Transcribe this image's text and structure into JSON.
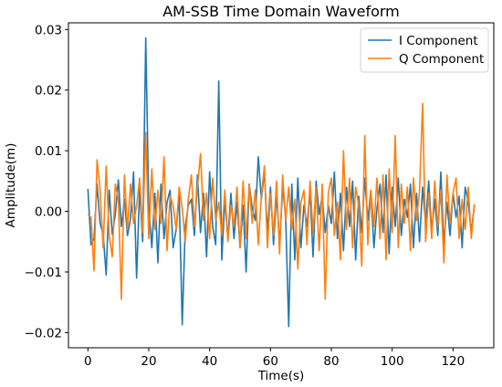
{
  "chart_data": {
    "type": "line",
    "title": "AM-SSB Time Domain Waveform",
    "xlabel": "Time(s)",
    "ylabel": "Amplitude(m)",
    "xlim": [
      -6.4,
      133.4
    ],
    "ylim": [
      -0.0225,
      0.0311
    ],
    "xticks": [
      0,
      20,
      40,
      60,
      80,
      100,
      120
    ],
    "xtick_labels": [
      "0",
      "20",
      "40",
      "60",
      "80",
      "100",
      "120"
    ],
    "yticks": [
      -0.02,
      -0.01,
      0.0,
      0.01,
      0.02,
      0.03
    ],
    "ytick_labels": [
      "−0.02",
      "−0.01",
      "0.00",
      "0.01",
      "0.02",
      "0.03"
    ],
    "grid": false,
    "legend_position": "top-right",
    "x": [
      0,
      1,
      2,
      3,
      4,
      5,
      6,
      7,
      8,
      9,
      10,
      11,
      12,
      13,
      14,
      15,
      16,
      17,
      18,
      19,
      20,
      21,
      22,
      23,
      24,
      25,
      26,
      27,
      28,
      29,
      30,
      31,
      32,
      33,
      34,
      35,
      36,
      37,
      38,
      39,
      40,
      41,
      42,
      43,
      44,
      45,
      46,
      47,
      48,
      49,
      50,
      51,
      52,
      53,
      54,
      55,
      56,
      57,
      58,
      59,
      60,
      61,
      62,
      63,
      64,
      65,
      66,
      67,
      68,
      69,
      70,
      71,
      72,
      73,
      74,
      75,
      76,
      77,
      78,
      79,
      80,
      81,
      82,
      83,
      84,
      85,
      86,
      87,
      88,
      89,
      90,
      91,
      92,
      93,
      94,
      95,
      96,
      97,
      98,
      99,
      100,
      101,
      102,
      103,
      104,
      105,
      106,
      107,
      108,
      109,
      110,
      111,
      112,
      113,
      114,
      115,
      116,
      117,
      118,
      119,
      120,
      121,
      122,
      123,
      124,
      125,
      126,
      127
    ],
    "series": [
      {
        "name": "I Component",
        "color": "#1f77b4",
        "values": [
          0.0037,
          -0.0055,
          -0.0045,
          0.0045,
          -0.002,
          -0.0038,
          -0.0105,
          0.0035,
          -0.0038,
          -0.0005,
          0.0052,
          -0.0025,
          0.002,
          -0.004,
          -0.0012,
          0.0065,
          -0.011,
          0.004,
          -0.005,
          0.0286,
          0.001,
          -0.006,
          0.003,
          -0.0085,
          0.0045,
          -0.0045,
          0.0015,
          0.0035,
          -0.006,
          -0.003,
          0.0025,
          -0.0187,
          -0.0025,
          0.001,
          0.002,
          -0.004,
          0.006,
          -0.0035,
          0.003,
          -0.0075,
          0.0065,
          -0.0025,
          -0.0055,
          0.0215,
          -0.008,
          0.002,
          -0.0045,
          0.003,
          -0.0045,
          0.0015,
          -0.006,
          0.001,
          -0.01,
          0.0045,
          0.0005,
          -0.0015,
          0.009,
          0.002,
          0.0065,
          -0.0035,
          0.004,
          -0.0055,
          0.003,
          -0.0055,
          0.004,
          -0.001,
          -0.019,
          0.0045,
          -0.008,
          0.0055,
          -0.006,
          0.001,
          -0.0025,
          0.0035,
          -0.0075,
          0.005,
          -0.0005,
          0.0025,
          -0.0035,
          0.001,
          -0.002,
          0.0065,
          -0.0045,
          0.003,
          -0.0065,
          0.004,
          -0.0025,
          0.005,
          -0.008,
          0.0025,
          -0.0035,
          0.0055,
          -0.0015,
          0.0035,
          -0.006,
          0.0005,
          0.0045,
          -0.0035,
          0.006,
          -0.007,
          0.004,
          -0.0025,
          0.0055,
          -0.004,
          0.002,
          -0.001,
          0.0045,
          -0.006,
          0.003,
          -0.005,
          0.004,
          -0.002,
          0.005,
          -0.0035,
          0.002,
          -0.004,
          0.0065,
          -0.0055,
          0.0015,
          -0.004,
          0.003,
          -0.001,
          0.0025,
          -0.006,
          0.004,
          0.0015,
          -0.0035,
          0.001
        ]
      },
      {
        "name": "Q Component",
        "color": "#ff7f0e",
        "values": [
          -0.0005,
          -0.001,
          -0.0098,
          0.0085,
          0.0035,
          -0.006,
          0.0075,
          -0.004,
          -0.0075,
          0.0045,
          0.002,
          -0.0145,
          0.006,
          -0.003,
          0.0045,
          -0.002,
          0.001,
          0.0055,
          -0.0035,
          0.013,
          -0.0045,
          0.007,
          -0.003,
          0.0035,
          -0.002,
          0.009,
          -0.0065,
          0.0025,
          0.001,
          -0.003,
          0.004,
          0.0005,
          -0.005,
          0.002,
          0.006,
          -0.0025,
          0.004,
          0.0095,
          -0.0015,
          0.003,
          -0.0045,
          0.0055,
          -0.0015,
          0.0015,
          -0.004,
          0.0035,
          -0.005,
          0.001,
          -0.0025,
          0.004,
          -0.006,
          0.005,
          -0.0045,
          0.0045,
          -0.002,
          0.0035,
          -0.0055,
          0.0025,
          0.0075,
          -0.006,
          0.003,
          -0.004,
          0.005,
          -0.007,
          0.006,
          -0.0015,
          0.004,
          -0.003,
          0.002,
          -0.0095,
          0.0015,
          0.0035,
          -0.0055,
          0.005,
          -0.0035,
          0.004,
          -0.0065,
          0.0045,
          -0.0145,
          0.003,
          0.0055,
          -0.004,
          0.0015,
          -0.008,
          0.01,
          -0.003,
          0.0055,
          -0.006,
          0.004,
          0.001,
          -0.009,
          0.0125,
          -0.0055,
          0.0035,
          -0.0025,
          0.0055,
          -0.0045,
          0.006,
          -0.008,
          0.007,
          -0.0035,
          0.0125,
          -0.006,
          0.0045,
          -0.002,
          0.004,
          -0.0065,
          0.0055,
          -0.0015,
          0.0035,
          0.0178,
          -0.005,
          0.003,
          -0.0045,
          0.005,
          -0.0025,
          0.0035,
          -0.0085,
          0.006,
          -0.002,
          0.003,
          0.0055,
          -0.0045,
          0.002,
          -0.003,
          0.004,
          -0.0045,
          0.0012
        ]
      }
    ]
  }
}
